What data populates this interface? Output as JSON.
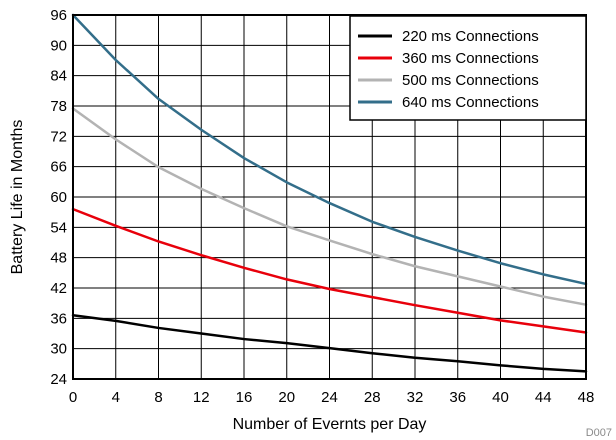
{
  "chart_data": {
    "type": "line",
    "title": "",
    "xlabel": "Number of Evernts per Day",
    "ylabel": "Battery Life in Months",
    "xlim": [
      0,
      48
    ],
    "ylim": [
      24,
      96
    ],
    "x_ticks": [
      0,
      4,
      8,
      12,
      16,
      20,
      24,
      28,
      32,
      36,
      40,
      44,
      48
    ],
    "y_ticks": [
      24,
      30,
      36,
      42,
      48,
      54,
      60,
      66,
      72,
      78,
      84,
      90,
      96
    ],
    "grid": true,
    "legend_position": "top-right",
    "x": [
      0,
      4,
      8,
      12,
      16,
      20,
      24,
      28,
      32,
      36,
      40,
      44,
      48
    ],
    "series": [
      {
        "name": "220 ms Connections",
        "color": "#000000",
        "values": [
          36.6,
          35.5,
          34.1,
          33.0,
          31.9,
          31.1,
          30.1,
          29.1,
          28.2,
          27.5,
          26.7,
          26.0,
          25.5
        ]
      },
      {
        "name": "360 ms Connections",
        "color": "#e8000b",
        "values": [
          57.6,
          54.3,
          51.2,
          48.5,
          46.0,
          43.7,
          41.8,
          40.2,
          38.6,
          37.1,
          35.6,
          34.4,
          33.2
        ]
      },
      {
        "name": "500 ms Connections",
        "color": "#b3b3b3",
        "values": [
          77.5,
          71.4,
          65.9,
          61.6,
          57.8,
          54.2,
          51.4,
          48.7,
          46.3,
          44.3,
          42.3,
          40.3,
          38.7
        ]
      },
      {
        "name": "640 ms Connections",
        "color": "#336e8a",
        "values": [
          96.0,
          87.1,
          79.4,
          73.3,
          67.7,
          62.9,
          58.8,
          55.1,
          52.1,
          49.4,
          46.9,
          44.7,
          42.8
        ]
      }
    ]
  },
  "figure_code": "D007"
}
